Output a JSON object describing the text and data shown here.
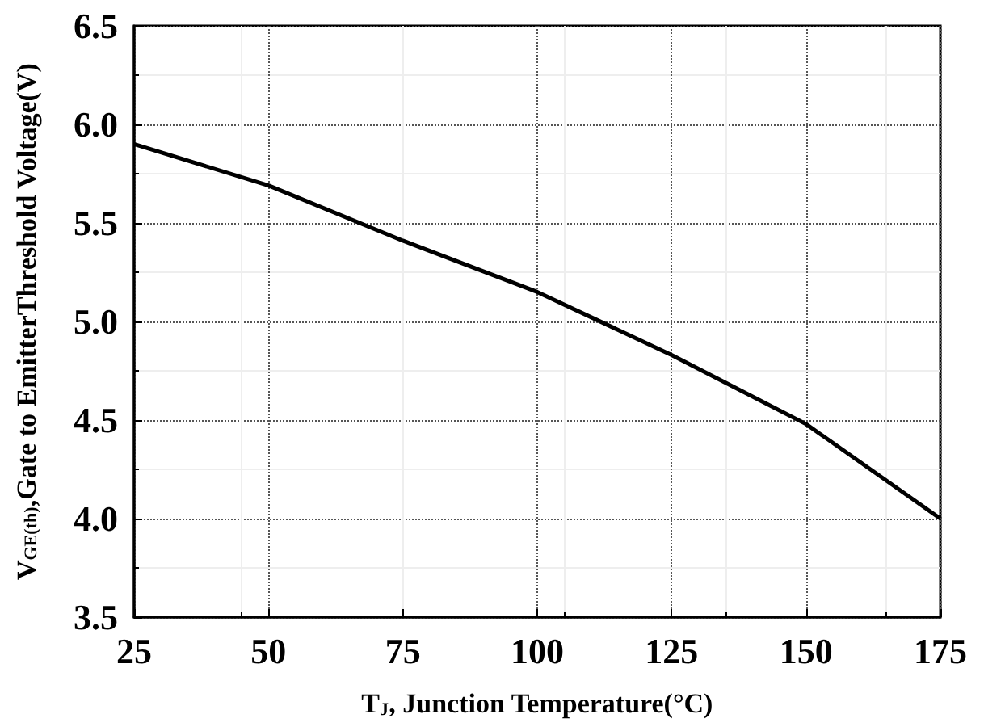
{
  "chart_data": {
    "type": "line",
    "xlabel": "T$_{J}$, Junction Temperature(°C)",
    "ylabel": "V$_{GE(th)}$,Gate to EmitterThreshold Voltage(V)",
    "x": [
      25,
      50,
      75,
      100,
      125,
      150,
      175
    ],
    "series": [
      {
        "color": "#000000",
        "values": [
          5.9,
          5.69,
          5.41,
          5.15,
          4.83,
          4.48,
          4.0
        ]
      }
    ],
    "xlim": [
      25,
      175
    ],
    "xticks": [
      25,
      50,
      75,
      100,
      125,
      150,
      175
    ],
    "ylim": [
      3.5,
      6.5
    ],
    "yticks": [
      {
        "value": 3.5,
        "label": "3.5"
      },
      {
        "value": 4,
        "label": "4.0"
      },
      {
        "value": 4.5,
        "label": "4.5"
      },
      {
        "value": 5,
        "label": "5.0"
      },
      {
        "value": 5.5,
        "label": "5.5"
      },
      {
        "value": 6,
        "label": "6.0"
      },
      {
        "value": 6.5,
        "label": "6.5"
      }
    ],
    "grid": true,
    "marker": "none",
    "line_style": "solid"
  }
}
